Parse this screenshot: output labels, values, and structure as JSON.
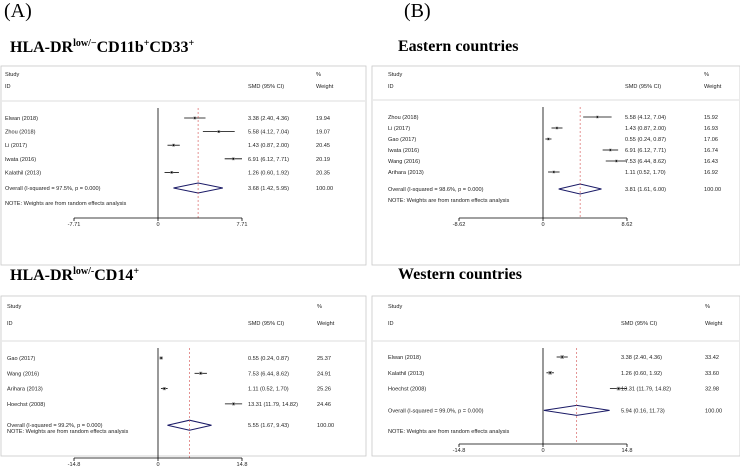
{
  "panel_labels": {
    "a": "(A)",
    "b": "(B)"
  },
  "titles": {
    "p1": {
      "base": "HLA-DR",
      "sup1": "low/−",
      "mid": "CD11b",
      "sup2": "+",
      "tail": "CD33",
      "sup3": "+"
    },
    "p2": {
      "text": "Eastern countries"
    },
    "p3": {
      "base": "HLA-DR",
      "sup1": "low/-",
      "tail": "CD14",
      "sup2": "+"
    },
    "p4": {
      "text": "Western countries"
    }
  },
  "headers": {
    "study": "Study",
    "id": "ID",
    "smd": "SMD (95% CI)",
    "pct": "%",
    "weight": "Weight"
  },
  "note": "NOTE: Weights are from random effects analysis",
  "chart_data": [
    {
      "type": "forest",
      "title": "HLA-DRlow/−CD11b+CD33+",
      "xlim": [
        -7.71,
        7.71
      ],
      "ticks": [
        "-7.71",
        "0",
        "7.71"
      ],
      "studies": [
        {
          "id": "Elwan (2018)",
          "smd": 3.38,
          "lo": 2.4,
          "hi": 4.36,
          "smd_text": "3.38 (2.40, 4.36)",
          "weight": "19.94",
          "w": 19.94
        },
        {
          "id": "Zhou (2018)",
          "smd": 5.58,
          "lo": 4.12,
          "hi": 7.04,
          "smd_text": "5.58 (4.12, 7.04)",
          "weight": "19.07",
          "w": 19.07
        },
        {
          "id": "Li (2017)",
          "smd": 1.43,
          "lo": 0.87,
          "hi": 2.0,
          "smd_text": "1.43 (0.87, 2.00)",
          "weight": "20.45",
          "w": 20.45
        },
        {
          "id": "Iwata (2016)",
          "smd": 6.91,
          "lo": 6.12,
          "hi": 7.71,
          "smd_text": "6.91 (6.12, 7.71)",
          "weight": "20.19",
          "w": 20.19
        },
        {
          "id": "Kalathil (2013)",
          "smd": 1.26,
          "lo": 0.6,
          "hi": 1.92,
          "smd_text": "1.26 (0.60, 1.92)",
          "weight": "20.35",
          "w": 20.35
        }
      ],
      "overall": {
        "label": "Overall  (I-squared = 97.5%, p = 0.000)",
        "smd": 3.68,
        "lo": 1.42,
        "hi": 5.95,
        "smd_text": "3.68 (1.42, 5.95)",
        "weight": "100.00"
      }
    },
    {
      "type": "forest",
      "title": "Eastern countries",
      "xlim": [
        -8.62,
        8.62
      ],
      "ticks": [
        "-8.62",
        "0",
        "8.62"
      ],
      "studies": [
        {
          "id": "Zhou (2018)",
          "smd": 5.58,
          "lo": 4.12,
          "hi": 7.04,
          "smd_text": "5.58 (4.12, 7.04)",
          "weight": "15.92",
          "w": 15.92
        },
        {
          "id": "Li (2017)",
          "smd": 1.43,
          "lo": 0.87,
          "hi": 2.0,
          "smd_text": "1.43 (0.87, 2.00)",
          "weight": "16.93",
          "w": 16.93
        },
        {
          "id": "Gao (2017)",
          "smd": 0.55,
          "lo": 0.24,
          "hi": 0.87,
          "smd_text": "0.55 (0.24, 0.87)",
          "weight": "17.06",
          "w": 17.06
        },
        {
          "id": "Iwata (2016)",
          "smd": 6.91,
          "lo": 6.12,
          "hi": 7.71,
          "smd_text": "6.91 (6.12, 7.71)",
          "weight": "16.74",
          "w": 16.74
        },
        {
          "id": "Wang (2016)",
          "smd": 7.53,
          "lo": 6.44,
          "hi": 8.62,
          "smd_text": "7.53 (6.44, 8.62)",
          "weight": "16.43",
          "w": 16.43
        },
        {
          "id": "Arihara (2013)",
          "smd": 1.11,
          "lo": 0.52,
          "hi": 1.7,
          "smd_text": "1.11 (0.52, 1.70)",
          "weight": "16.92",
          "w": 16.92
        }
      ],
      "overall": {
        "label": "Overall  (I-squared = 98.6%, p = 0.000)",
        "smd": 3.81,
        "lo": 1.61,
        "hi": 6.0,
        "smd_text": "3.81 (1.61, 6.00)",
        "weight": "100.00"
      }
    },
    {
      "type": "forest",
      "title": "HLA-DRlow/-CD14+",
      "xlim": [
        -14.8,
        14.8
      ],
      "ticks": [
        "-14.8",
        "0",
        "14.8"
      ],
      "studies": [
        {
          "id": "Gao (2017)",
          "smd": 0.55,
          "lo": 0.24,
          "hi": 0.87,
          "smd_text": "0.55 (0.24, 0.87)",
          "weight": "25.37",
          "w": 25.37
        },
        {
          "id": "Wang (2016)",
          "smd": 7.53,
          "lo": 6.44,
          "hi": 8.62,
          "smd_text": "7.53 (6.44, 8.62)",
          "weight": "24.91",
          "w": 24.91
        },
        {
          "id": "Arihara (2013)",
          "smd": 1.11,
          "lo": 0.52,
          "hi": 1.7,
          "smd_text": "1.11 (0.52, 1.70)",
          "weight": "25.26",
          "w": 25.26
        },
        {
          "id": "Hoechst (2008)",
          "smd": 13.31,
          "lo": 11.79,
          "hi": 14.82,
          "smd_text": "13.31 (11.79, 14.82)",
          "weight": "24.46",
          "w": 24.46
        }
      ],
      "overall": {
        "label": "Overall  (I-squared = 99.2%, p = 0.000)",
        "smd": 5.55,
        "lo": 1.67,
        "hi": 9.43,
        "smd_text": "5.55 (1.67, 9.43)",
        "weight": "100.00"
      }
    },
    {
      "type": "forest",
      "title": "Western countries",
      "xlim": [
        -14.8,
        14.8
      ],
      "ticks": [
        "-14.8",
        "0",
        "14.8"
      ],
      "studies": [
        {
          "id": "Elwan (2018)",
          "smd": 3.38,
          "lo": 2.4,
          "hi": 4.36,
          "smd_text": "3.38 (2.40, 4.36)",
          "weight": "33.42",
          "w": 33.42
        },
        {
          "id": "Kalathil (2013)",
          "smd": 1.26,
          "lo": 0.6,
          "hi": 1.92,
          "smd_text": "1.26 (0.60, 1.92)",
          "weight": "33.60",
          "w": 33.6
        },
        {
          "id": "Hoechst (2008)",
          "smd": 13.31,
          "lo": 11.79,
          "hi": 14.82,
          "smd_text": "13.31 (11.79, 14.82)",
          "weight": "32.98",
          "w": 32.98
        }
      ],
      "overall": {
        "label": "Overall  (I-squared = 99.0%, p = 0.000)",
        "smd": 5.94,
        "lo": 0.16,
        "hi": 11.73,
        "smd_text": "5.94 (0.16, 11.73)",
        "weight": "100.00"
      }
    }
  ]
}
